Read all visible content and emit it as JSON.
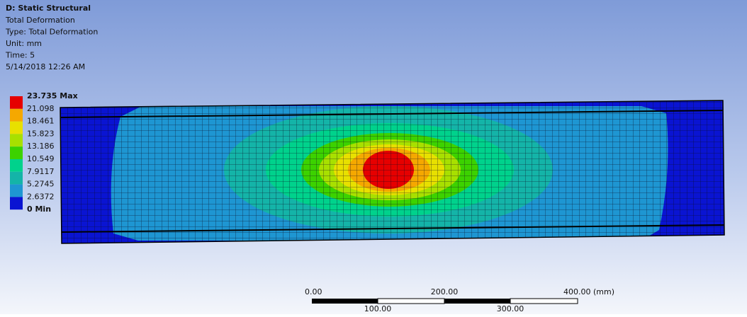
{
  "header": {
    "title": "D: Static Structural",
    "lines": [
      "Total Deformation",
      "Type: Total Deformation",
      "Unit: mm",
      "Time: 5",
      "5/14/2018 12:26 AM"
    ]
  },
  "legend": {
    "labels": [
      "23.735 Max",
      "21.098",
      "18.461",
      "15.823",
      "13.186",
      "10.549",
      "7.9117",
      "5.2745",
      "2.6372",
      "0 Min"
    ],
    "colors": [
      "#e60000",
      "#f5a800",
      "#e8e000",
      "#a8e000",
      "#3cd200",
      "#00d28c",
      "#14b4a8",
      "#1e96d2",
      "#0a14d2"
    ]
  },
  "scale_bar": {
    "top_labels": [
      "0.00",
      "200.00",
      "400.00 (mm)"
    ],
    "bottom_labels": [
      "100.00",
      "300.00"
    ]
  }
}
